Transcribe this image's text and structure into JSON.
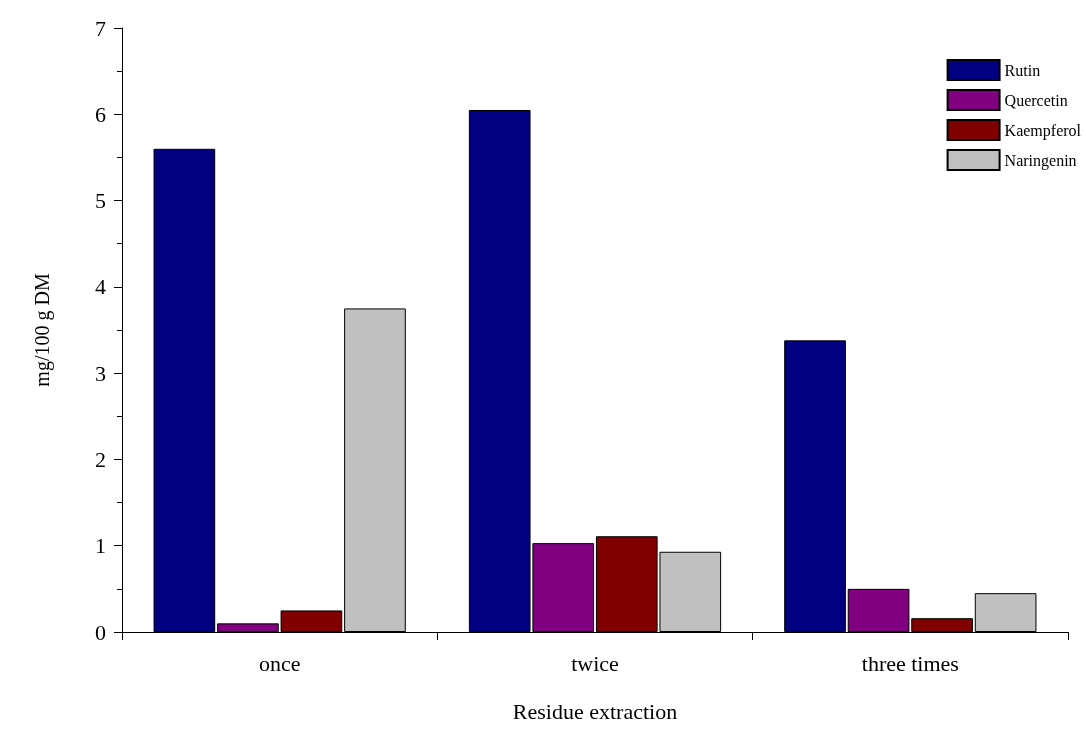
{
  "chart_data": {
    "type": "bar",
    "xlabel": "Residue extraction",
    "ylabel": "mg/100 g DM",
    "categories": [
      "once",
      "twice",
      "three times"
    ],
    "series": [
      {
        "name": "Rutin",
        "color": "#000080",
        "values": [
          5.6,
          6.05,
          3.38
        ]
      },
      {
        "name": "Quercetin",
        "color": "#800080",
        "values": [
          0.1,
          1.03,
          0.5
        ]
      },
      {
        "name": "Kaempferol",
        "color": "#800000",
        "values": [
          0.25,
          1.11,
          0.16
        ]
      },
      {
        "name": "Naringenin",
        "color": "#c0c0c0",
        "values": [
          3.75,
          0.93,
          0.45
        ]
      }
    ],
    "ylim": [
      0,
      7
    ],
    "yticks": [
      0,
      1,
      2,
      3,
      4,
      5,
      6,
      7
    ],
    "grid": false,
    "legend": "top right"
  }
}
